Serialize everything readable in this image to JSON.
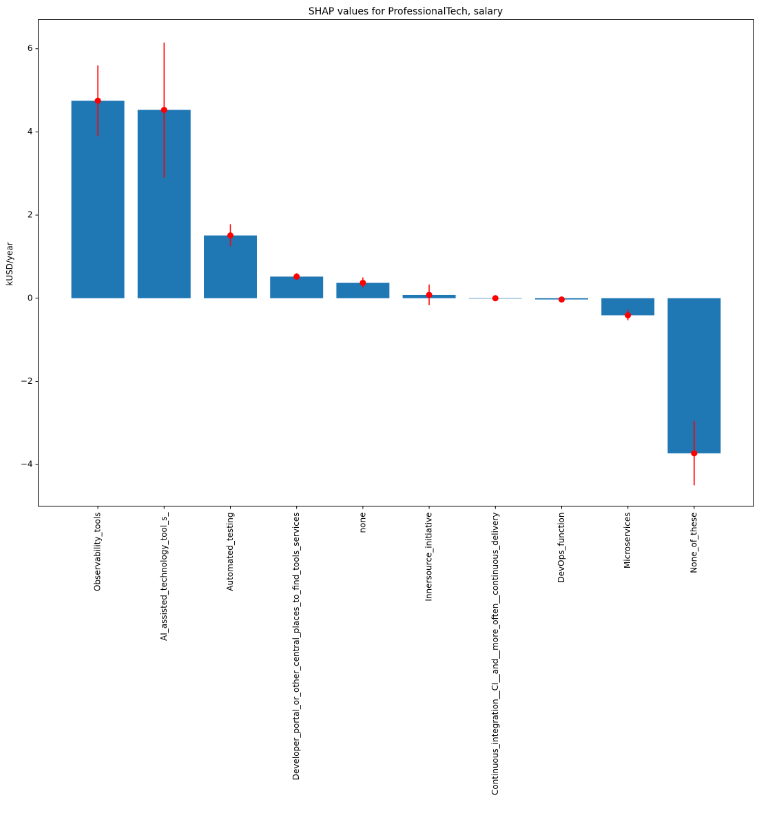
{
  "chart_data": {
    "type": "bar",
    "title": "SHAP values for ProfessionalTech, salary",
    "xlabel": "",
    "ylabel": "kUSD/year",
    "ylim": [
      -5.0,
      6.7
    ],
    "yticks": [
      -4,
      -2,
      0,
      2,
      4,
      6
    ],
    "ytick_labels": [
      "−4",
      "−2",
      "0",
      "2",
      "4",
      "6"
    ],
    "grid": false,
    "bar_color": "#1f77b4",
    "error_color": "#ff0000",
    "categories": [
      "Observability_tools",
      "AI_assisted_technology_tool_s_",
      "Automated_testing",
      "Developer_portal_or_other_central_places_to_find_tools_services",
      "none",
      "Innersource_initiative",
      "Continuous_integration__CI__and__more_often__continuous_delivery",
      "DevOps_function",
      "Microservices",
      "None_of_these"
    ],
    "values": [
      4.75,
      4.53,
      1.51,
      0.52,
      0.37,
      0.08,
      0.0,
      -0.03,
      -0.41,
      -3.73
    ],
    "error_low": [
      3.9,
      2.9,
      1.25,
      0.45,
      0.26,
      -0.17,
      -0.02,
      -0.07,
      -0.53,
      -4.5
    ],
    "error_high": [
      5.6,
      6.15,
      1.78,
      0.6,
      0.5,
      0.33,
      0.02,
      0.01,
      -0.28,
      -2.95
    ]
  }
}
